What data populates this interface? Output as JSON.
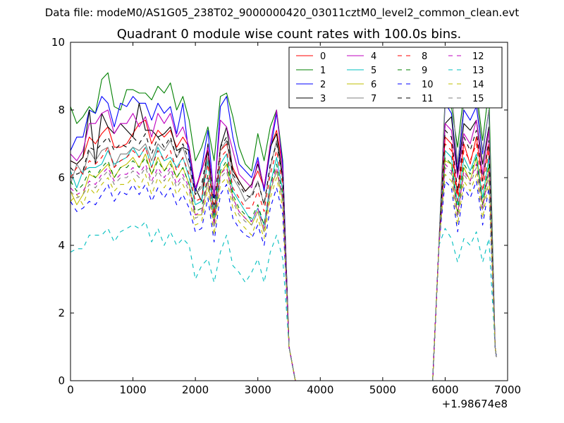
{
  "header": {
    "data_file": "Data file: modeM0/AS1G05_238T02_9000000420_03011cztM0_level2_common_clean.evt"
  },
  "chart_data": {
    "type": "line",
    "title": "Quadrant 0 module wise count rates with 100.0s bins.",
    "xlabel": "",
    "ylabel": "",
    "x_offset_label": "+1.98674e8",
    "xlim": [
      0,
      7000
    ],
    "ylim": [
      0,
      10
    ],
    "x_ticks": [
      0,
      1000,
      2000,
      3000,
      4000,
      5000,
      6000,
      7000
    ],
    "x_tick_labels": [
      "0",
      "1000",
      "2000",
      "3000",
      "4000",
      "5000",
      "6000",
      "7000"
    ],
    "y_ticks": [
      0,
      2,
      4,
      6,
      8,
      10
    ],
    "y_tick_labels": [
      "0",
      "2",
      "4",
      "6",
      "8",
      "10"
    ],
    "legend": {
      "placement": "top-right",
      "columns": 4
    },
    "x": [
      0,
      100,
      200,
      300,
      400,
      500,
      600,
      700,
      800,
      900,
      1000,
      1100,
      1200,
      1300,
      1400,
      1500,
      1600,
      1700,
      1800,
      1900,
      2000,
      2100,
      2200,
      2300,
      2400,
      2500,
      2600,
      2700,
      2800,
      2900,
      3000,
      3100,
      3200,
      3300,
      3400,
      3500,
      3600,
      3650,
      5750,
      5800,
      5900,
      6000,
      6100,
      6200,
      6300,
      6400,
      6500,
      6600,
      6700,
      6800,
      6820
    ],
    "series": [
      {
        "name": "0",
        "color": "#ff0000",
        "dash": "solid",
        "values": [
          6.5,
          6.4,
          6.6,
          7.2,
          7.0,
          7.3,
          7.5,
          6.9,
          6.9,
          7.0,
          7.3,
          7.6,
          7.7,
          7.0,
          7.4,
          7.2,
          7.4,
          6.9,
          7.2,
          6.9,
          5.6,
          6.2,
          6.8,
          5.0,
          6.8,
          7.0,
          6.3,
          5.9,
          5.6,
          5.8,
          6.2,
          5.7,
          6.9,
          7.4,
          6.3,
          1.0,
          0.0,
          0.0,
          0.0,
          0.0,
          4.0,
          7.2,
          7.0,
          5.5,
          7.0,
          6.4,
          7.2,
          5.9,
          7.0,
          1.0,
          0.7
        ]
      },
      {
        "name": "1",
        "color": "#008000",
        "dash": "solid",
        "values": [
          8.1,
          7.6,
          7.8,
          8.1,
          7.9,
          8.9,
          9.1,
          8.1,
          8.0,
          8.6,
          8.6,
          8.5,
          8.5,
          8.3,
          8.7,
          8.5,
          8.8,
          8.0,
          8.4,
          7.7,
          6.5,
          6.9,
          7.5,
          6.5,
          8.4,
          8.5,
          7.8,
          6.9,
          6.4,
          6.2,
          7.3,
          6.5,
          7.5,
          8.0,
          6.5,
          1.0,
          0.0,
          0.0,
          0.0,
          0.0,
          4.0,
          8.4,
          8.1,
          6.9,
          8.5,
          8.1,
          8.6,
          7.1,
          8.6,
          1.0,
          0.7
        ]
      },
      {
        "name": "2",
        "color": "#0000ff",
        "dash": "solid",
        "values": [
          6.8,
          7.2,
          7.2,
          8.0,
          7.9,
          8.4,
          8.2,
          7.5,
          8.2,
          8.1,
          8.4,
          8.2,
          8.2,
          7.7,
          8.2,
          7.9,
          8.1,
          7.3,
          8.2,
          6.6,
          5.6,
          6.3,
          7.4,
          5.4,
          8.1,
          8.4,
          7.2,
          6.4,
          6.2,
          6.0,
          6.6,
          5.6,
          6.8,
          7.9,
          6.4,
          1.0,
          0.0,
          0.0,
          0.0,
          0.0,
          4.0,
          8.2,
          7.9,
          6.2,
          8.0,
          7.7,
          8.1,
          6.7,
          8.0,
          1.0,
          0.7
        ]
      },
      {
        "name": "3",
        "color": "#000000",
        "dash": "solid",
        "values": [
          6.5,
          6.4,
          6.6,
          8.0,
          6.4,
          7.9,
          7.5,
          7.3,
          7.6,
          7.4,
          7.2,
          8.2,
          7.4,
          7.4,
          7.2,
          7.3,
          7.5,
          6.8,
          6.9,
          6.8,
          5.7,
          5.3,
          7.0,
          4.8,
          6.9,
          7.5,
          6.2,
          5.9,
          5.6,
          5.8,
          6.4,
          5.7,
          6.9,
          7.3,
          6.0,
          1.0,
          0.0,
          0.0,
          0.0,
          0.0,
          4.0,
          7.6,
          7.8,
          6.1,
          7.6,
          7.4,
          7.7,
          6.4,
          7.5,
          1.0,
          0.7
        ]
      },
      {
        "name": "4",
        "color": "#bf00bf",
        "dash": "solid",
        "values": [
          6.7,
          6.5,
          6.8,
          7.6,
          7.6,
          7.9,
          8.0,
          7.3,
          7.6,
          7.6,
          7.9,
          7.5,
          7.8,
          7.2,
          7.9,
          7.6,
          7.9,
          7.2,
          7.5,
          6.9,
          5.7,
          6.2,
          6.9,
          5.5,
          7.7,
          7.5,
          6.8,
          6.1,
          5.9,
          5.7,
          6.5,
          5.7,
          7.0,
          8.0,
          6.2,
          1.0,
          0.0,
          0.0,
          0.0,
          0.0,
          4.0,
          7.6,
          7.4,
          6.0,
          7.3,
          7.0,
          7.7,
          6.1,
          7.4,
          1.0,
          0.7
        ]
      },
      {
        "name": "5",
        "color": "#00bfbf",
        "dash": "solid",
        "values": [
          6.2,
          5.7,
          6.2,
          6.3,
          6.3,
          6.4,
          6.8,
          6.4,
          6.5,
          6.6,
          6.9,
          6.6,
          6.9,
          6.3,
          6.9,
          6.5,
          6.6,
          6.3,
          6.6,
          6.0,
          5.2,
          5.3,
          6.5,
          4.8,
          6.4,
          6.7,
          5.6,
          5.3,
          5.0,
          4.7,
          5.1,
          4.6,
          5.8,
          6.6,
          5.6,
          1.0,
          0.0,
          0.0,
          0.0,
          0.0,
          4.0,
          6.8,
          6.6,
          5.2,
          6.6,
          6.2,
          6.7,
          5.4,
          6.6,
          1.0,
          0.7
        ]
      },
      {
        "name": "6",
        "color": "#bfbf00",
        "dash": "solid",
        "values": [
          5.6,
          5.2,
          5.5,
          6.1,
          6.0,
          6.2,
          6.4,
          6.0,
          6.3,
          6.4,
          6.6,
          6.3,
          6.7,
          6.1,
          6.6,
          6.2,
          6.5,
          6.0,
          6.3,
          5.8,
          4.9,
          4.9,
          5.9,
          4.7,
          6.1,
          6.4,
          5.4,
          5.0,
          4.8,
          4.6,
          5.0,
          4.4,
          5.6,
          6.2,
          5.3,
          1.0,
          0.0,
          0.0,
          0.0,
          0.0,
          4.0,
          6.5,
          6.4,
          4.9,
          6.3,
          5.9,
          6.6,
          5.2,
          6.3,
          1.0,
          0.7
        ]
      },
      {
        "name": "7",
        "color": "#808080",
        "dash": "solid",
        "values": [
          5.8,
          6.4,
          6.1,
          6.8,
          6.5,
          6.8,
          6.9,
          6.3,
          6.7,
          6.7,
          6.9,
          6.8,
          7.0,
          6.5,
          7.0,
          6.8,
          7.1,
          6.6,
          6.9,
          6.3,
          5.5,
          5.7,
          6.6,
          5.0,
          6.8,
          7.1,
          6.0,
          5.7,
          5.3,
          5.5,
          5.9,
          5.2,
          6.3,
          7.1,
          5.9,
          1.0,
          0.0,
          0.0,
          0.0,
          0.0,
          4.0,
          8.3,
          8.7,
          6.4,
          8.2,
          8.4,
          8.4,
          6.8,
          8.0,
          1.0,
          0.7
        ]
      },
      {
        "name": "8",
        "color": "#ff0000",
        "dash": "dashed",
        "values": [
          6.0,
          6.3,
          6.1,
          6.5,
          6.4,
          6.6,
          6.9,
          6.3,
          6.5,
          6.6,
          6.8,
          6.6,
          6.9,
          6.3,
          6.8,
          6.5,
          6.8,
          6.2,
          6.6,
          6.1,
          5.3,
          5.4,
          6.4,
          4.9,
          6.6,
          6.8,
          5.7,
          5.4,
          5.1,
          5.1,
          5.6,
          5.0,
          6.1,
          6.8,
          5.8,
          1.0,
          0.0,
          0.0,
          0.0,
          0.0,
          4.0,
          7.0,
          6.8,
          5.3,
          6.8,
          6.5,
          7.0,
          5.6,
          6.8,
          1.0,
          0.7
        ]
      },
      {
        "name": "9",
        "color": "#008000",
        "dash": "dashed",
        "values": [
          5.9,
          5.6,
          5.8,
          6.2,
          6.0,
          6.3,
          6.5,
          6.0,
          6.3,
          6.3,
          6.5,
          6.3,
          6.6,
          6.1,
          6.5,
          6.2,
          6.4,
          6.0,
          6.3,
          5.8,
          5.0,
          5.1,
          6.1,
          4.7,
          6.2,
          6.5,
          5.5,
          5.1,
          4.9,
          4.8,
          5.2,
          4.6,
          5.8,
          6.4,
          5.5,
          1.0,
          0.0,
          0.0,
          0.0,
          0.0,
          4.0,
          6.6,
          6.4,
          5.0,
          6.4,
          6.1,
          6.6,
          5.2,
          6.4,
          1.0,
          0.7
        ]
      },
      {
        "name": "10",
        "color": "#0000ff",
        "dash": "dashed",
        "values": [
          5.3,
          5.0,
          5.1,
          5.3,
          5.2,
          5.5,
          5.8,
          5.3,
          5.6,
          5.5,
          5.8,
          5.5,
          5.8,
          5.3,
          5.7,
          5.4,
          5.7,
          5.2,
          5.5,
          5.1,
          4.4,
          4.5,
          5.4,
          4.1,
          5.5,
          5.8,
          4.8,
          4.5,
          4.3,
          4.2,
          4.6,
          4.0,
          5.1,
          5.7,
          4.9,
          1.0,
          0.0,
          0.0,
          0.0,
          0.0,
          4.0,
          5.9,
          5.7,
          4.4,
          5.7,
          5.4,
          5.9,
          4.6,
          5.7,
          1.0,
          0.7
        ]
      },
      {
        "name": "11",
        "color": "#000000",
        "dash": "dashed",
        "values": [
          6.3,
          6.1,
          6.2,
          6.9,
          6.8,
          7.0,
          7.2,
          6.8,
          7.0,
          6.9,
          7.2,
          7.0,
          7.3,
          6.7,
          7.2,
          6.9,
          7.2,
          6.6,
          7.0,
          6.5,
          5.5,
          5.8,
          6.8,
          5.2,
          6.9,
          7.2,
          6.1,
          5.8,
          5.5,
          5.4,
          5.9,
          5.2,
          6.4,
          7.0,
          6.0,
          1.0,
          0.0,
          0.0,
          0.0,
          0.0,
          4.0,
          7.4,
          7.2,
          5.6,
          7.2,
          6.8,
          7.4,
          5.9,
          7.1,
          1.0,
          0.7
        ]
      },
      {
        "name": "12",
        "color": "#bf00bf",
        "dash": "dashed",
        "values": [
          5.7,
          5.5,
          5.6,
          5.9,
          5.8,
          6.1,
          6.3,
          5.9,
          6.1,
          6.1,
          6.3,
          6.1,
          6.4,
          5.9,
          6.3,
          6.0,
          6.3,
          5.8,
          6.1,
          5.7,
          4.9,
          5.0,
          6.0,
          4.6,
          6.1,
          6.3,
          5.4,
          5.0,
          4.8,
          4.7,
          5.1,
          4.5,
          5.7,
          6.3,
          5.4,
          1.0,
          0.0,
          0.0,
          0.0,
          0.0,
          4.0,
          6.4,
          6.2,
          4.9,
          6.2,
          5.9,
          6.4,
          5.1,
          6.2,
          1.0,
          0.7
        ]
      },
      {
        "name": "13",
        "color": "#00bfbf",
        "dash": "dashed",
        "values": [
          3.8,
          3.9,
          3.9,
          4.3,
          4.3,
          4.3,
          4.5,
          4.1,
          4.4,
          4.5,
          4.6,
          4.5,
          4.7,
          4.1,
          4.5,
          4.0,
          4.4,
          4.0,
          4.2,
          4.0,
          3.0,
          3.4,
          3.6,
          2.9,
          3.8,
          4.3,
          3.4,
          3.2,
          2.9,
          3.2,
          3.6,
          2.9,
          3.8,
          4.3,
          3.6,
          1.0,
          0.0,
          0.0,
          0.0,
          0.0,
          4.0,
          4.5,
          4.2,
          3.5,
          4.2,
          4.0,
          4.4,
          3.5,
          4.2,
          1.0,
          0.7
        ]
      },
      {
        "name": "14",
        "color": "#bfbf00",
        "dash": "dashed",
        "values": [
          5.3,
          5.5,
          5.2,
          5.7,
          5.5,
          5.8,
          6.0,
          5.6,
          5.8,
          5.8,
          6.0,
          5.7,
          6.1,
          5.5,
          6.0,
          5.7,
          6.0,
          5.5,
          5.8,
          5.4,
          4.6,
          4.7,
          5.7,
          4.3,
          5.8,
          6.0,
          5.1,
          4.7,
          4.5,
          4.3,
          4.8,
          4.2,
          5.4,
          6.0,
          5.1,
          1.0,
          0.0,
          0.0,
          0.0,
          0.0,
          4.0,
          6.1,
          5.9,
          4.6,
          5.9,
          5.6,
          6.1,
          4.8,
          5.9,
          1.0,
          0.7
        ]
      },
      {
        "name": "15",
        "color": "#808080",
        "dash": "dashed",
        "values": [
          5.6,
          5.4,
          5.5,
          5.8,
          5.7,
          6.0,
          6.2,
          5.8,
          6.0,
          6.0,
          6.2,
          6.0,
          6.3,
          5.8,
          6.2,
          5.9,
          6.2,
          5.7,
          6.0,
          5.6,
          4.8,
          4.9,
          5.9,
          4.5,
          6.0,
          6.2,
          5.3,
          4.9,
          4.7,
          4.6,
          5.0,
          4.4,
          5.6,
          6.2,
          5.3,
          1.0,
          0.0,
          0.0,
          0.0,
          0.0,
          4.0,
          6.3,
          6.1,
          4.8,
          6.1,
          5.8,
          6.3,
          5.0,
          6.1,
          1.0,
          0.7
        ]
      }
    ]
  }
}
